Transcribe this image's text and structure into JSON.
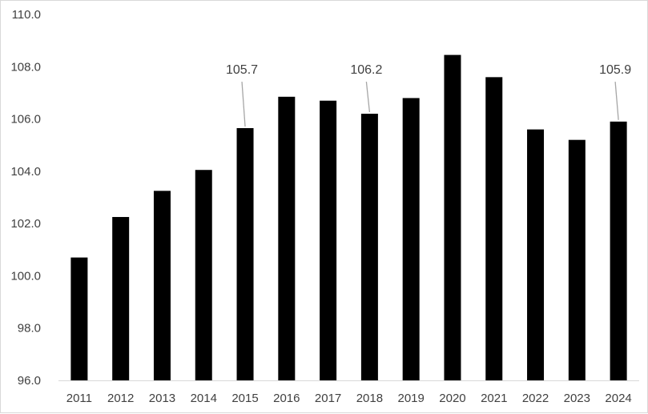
{
  "chart_data": {
    "type": "bar",
    "title": "",
    "xlabel": "",
    "ylabel": "",
    "categories": [
      "2011",
      "2012",
      "2013",
      "2014",
      "2015",
      "2016",
      "2017",
      "2018",
      "2019",
      "2020",
      "2021",
      "2022",
      "2023",
      "2024"
    ],
    "values": [
      100.7,
      102.25,
      103.25,
      104.05,
      105.65,
      106.85,
      106.7,
      106.2,
      106.8,
      108.45,
      107.6,
      105.6,
      105.2,
      105.9
    ],
    "ylim": [
      96.0,
      110.0
    ],
    "yticks": [
      "96.0",
      "98.0",
      "100.0",
      "102.0",
      "104.0",
      "106.0",
      "108.0",
      "110.0"
    ],
    "annotations": [
      {
        "category": "2015",
        "text": "105.7"
      },
      {
        "category": "2018",
        "text": "106.2"
      },
      {
        "category": "2024",
        "text": "105.9"
      }
    ],
    "grid": false,
    "legend": "none",
    "colors": {
      "bar": "#000000",
      "axis": "#d9d9d9",
      "text": "#404040",
      "leader": "#a6a6a6"
    }
  }
}
